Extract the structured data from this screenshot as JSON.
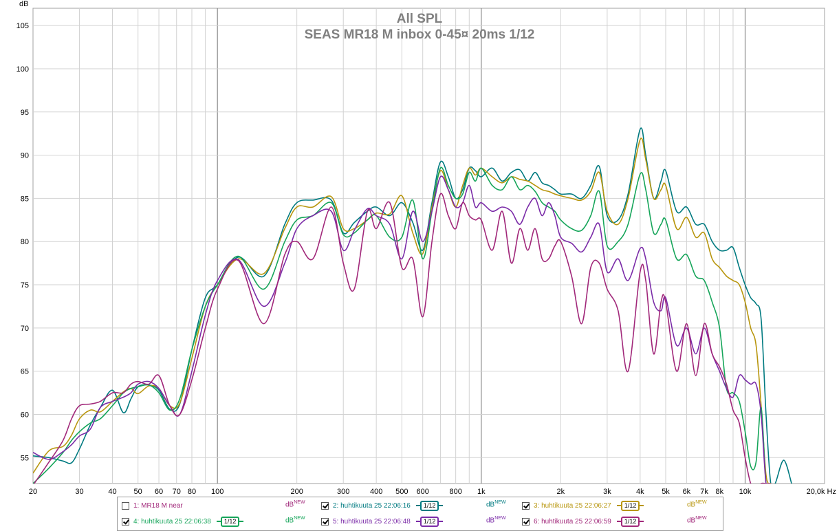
{
  "chart_data": {
    "type": "line",
    "title": "All SPL",
    "subtitle": "SEAS MR18 M inbox 0-45¤ 20ms 1/12",
    "ylabel": "dB",
    "xunit": "Hz",
    "xscale": "log",
    "xlim": [
      20,
      20000
    ],
    "ylim": [
      52,
      107
    ],
    "grid": true,
    "x_ticks": [
      {
        "v": 20,
        "t": "20"
      },
      {
        "v": 30,
        "t": "30"
      },
      {
        "v": 40,
        "t": "40"
      },
      {
        "v": 50,
        "t": "50"
      },
      {
        "v": 60,
        "t": "60"
      },
      {
        "v": 70,
        "t": "70"
      },
      {
        "v": 80,
        "t": "80"
      },
      {
        "v": 100,
        "t": "100"
      },
      {
        "v": 200,
        "t": "200"
      },
      {
        "v": 300,
        "t": "300"
      },
      {
        "v": 400,
        "t": "400"
      },
      {
        "v": 500,
        "t": "500"
      },
      {
        "v": 600,
        "t": "600"
      },
      {
        "v": 800,
        "t": "800"
      },
      {
        "v": 1000,
        "t": "1k"
      },
      {
        "v": 2000,
        "t": "2k"
      },
      {
        "v": 3000,
        "t": "3k"
      },
      {
        "v": 4000,
        "t": "4k"
      },
      {
        "v": 5000,
        "t": "5k"
      },
      {
        "v": 6000,
        "t": "6k"
      },
      {
        "v": 7000,
        "t": "7k"
      },
      {
        "v": 8000,
        "t": "8k"
      },
      {
        "v": 10000,
        "t": "10k"
      },
      {
        "v": 20000,
        "t": "20,0k Hz"
      }
    ],
    "y_ticks": [
      55,
      60,
      65,
      70,
      75,
      80,
      85,
      90,
      95,
      100,
      105
    ],
    "series": [
      {
        "name": "2: huhtikuuta 25 22:06:16",
        "color": "#007a80",
        "x": [
          20,
          23,
          26,
          28,
          30,
          33,
          36,
          40,
          44,
          47,
          50,
          55,
          60,
          66,
          72,
          80,
          90,
          100,
          120,
          150,
          180,
          200,
          230,
          270,
          300,
          330,
          370,
          400,
          450,
          500,
          550,
          600,
          650,
          700,
          750,
          800,
          850,
          900,
          950,
          1000,
          1100,
          1200,
          1300,
          1400,
          1500,
          1600,
          1700,
          1800,
          1900,
          2000,
          2200,
          2400,
          2600,
          2800,
          3000,
          3300,
          3600,
          4000,
          4200,
          4500,
          4800,
          5000,
          5500,
          6000,
          6500,
          7000,
          7500,
          8000,
          8500,
          9000,
          9500,
          10000,
          10500,
          11000,
          11500,
          12000,
          12500,
          13000,
          14000,
          15000
        ],
        "y": [
          55.2,
          55.0,
          54.6,
          54.4,
          56.0,
          58.8,
          60.8,
          62.8,
          60.2,
          61.8,
          63.2,
          63.4,
          62.8,
          60.6,
          61.2,
          67.5,
          73.5,
          75.0,
          78.2,
          76.0,
          82.0,
          84.5,
          84.8,
          84.8,
          81.0,
          82.2,
          83.5,
          84.0,
          83.0,
          84.5,
          82.2,
          79.0,
          84.5,
          89.2,
          87.5,
          85.0,
          86.0,
          88.5,
          88.2,
          87.5,
          88.5,
          87.0,
          88.0,
          88.3,
          87.0,
          88.0,
          86.8,
          86.5,
          86.0,
          85.5,
          85.5,
          85.0,
          86.5,
          88.7,
          83.0,
          82.5,
          85.5,
          93.0,
          90.0,
          85.0,
          87.0,
          88.2,
          83.5,
          84.0,
          82.0,
          82.0,
          80.0,
          79.0,
          79.0,
          79.3,
          77.0,
          75.0,
          73.5,
          72.8,
          71.0,
          60.0,
          52.0,
          52.0,
          54.7,
          52.0
        ]
      },
      {
        "name": "3: huhtikuuta 25 22:06:27",
        "color": "#b8960e",
        "x": [
          20,
          23,
          26,
          28,
          30,
          33,
          36,
          40,
          44,
          47,
          50,
          55,
          60,
          66,
          72,
          80,
          90,
          100,
          120,
          150,
          180,
          200,
          230,
          270,
          300,
          330,
          370,
          400,
          450,
          500,
          550,
          600,
          650,
          700,
          750,
          800,
          850,
          900,
          950,
          1000,
          1100,
          1200,
          1300,
          1400,
          1500,
          1600,
          1700,
          1800,
          1900,
          2000,
          2200,
          2400,
          2600,
          2800,
          3000,
          3300,
          3600,
          4000,
          4200,
          4500,
          4800,
          5000,
          5500,
          6000,
          6500,
          7000,
          7500,
          8000,
          8500,
          9000,
          9500,
          10000,
          10500,
          11000,
          11500,
          12000,
          12500
        ],
        "y": [
          53.2,
          55.8,
          56.3,
          57.6,
          59.5,
          60.5,
          60.3,
          61.5,
          62.6,
          63.0,
          62.4,
          63.3,
          63.0,
          61.0,
          61.3,
          66.5,
          72.5,
          75.0,
          78.0,
          76.3,
          81.5,
          84.0,
          84.0,
          85.2,
          81.5,
          81.5,
          82.5,
          83.3,
          83.2,
          85.3,
          81.0,
          78.6,
          84.0,
          88.2,
          86.0,
          84.0,
          86.5,
          88.5,
          87.7,
          88.5,
          87.5,
          86.8,
          87.5,
          87.2,
          87.0,
          86.5,
          86.0,
          85.8,
          85.5,
          85.3,
          85.0,
          84.8,
          85.8,
          88.0,
          83.5,
          82.0,
          85.0,
          91.8,
          89.5,
          85.0,
          86.0,
          86.5,
          81.5,
          82.8,
          80.5,
          81.0,
          78.0,
          77.0,
          76.0,
          75.5,
          75.0,
          73.0,
          70.0,
          68.0,
          61.0,
          53.0,
          52.0
        ]
      },
      {
        "name": "4: huhtikuuta 25 22:06:38",
        "color": "#16a55a",
        "x": [
          20,
          23,
          26,
          28,
          30,
          33,
          36,
          40,
          44,
          47,
          50,
          55,
          60,
          66,
          72,
          80,
          90,
          100,
          120,
          150,
          180,
          200,
          230,
          270,
          300,
          330,
          370,
          400,
          450,
          500,
          550,
          600,
          650,
          700,
          750,
          800,
          850,
          900,
          950,
          1000,
          1100,
          1200,
          1300,
          1400,
          1500,
          1600,
          1700,
          1800,
          1900,
          2000,
          2200,
          2400,
          2600,
          2800,
          3000,
          3300,
          3600,
          4000,
          4200,
          4500,
          4800,
          5000,
          5500,
          6000,
          6500,
          7000,
          7500,
          8000,
          8500,
          9000,
          9500,
          10000,
          10500,
          11000,
          11500,
          12000,
          12500
        ],
        "y": [
          52.0,
          53.8,
          55.6,
          57.0,
          58.0,
          59.0,
          59.5,
          61.0,
          62.5,
          63.0,
          63.2,
          63.4,
          62.5,
          60.5,
          61.8,
          67.5,
          72.5,
          75.0,
          78.3,
          74.5,
          80.0,
          82.5,
          83.0,
          84.5,
          80.8,
          81.0,
          82.5,
          83.0,
          80.5,
          80.5,
          84.8,
          78.0,
          83.5,
          88.5,
          86.5,
          85.0,
          85.5,
          88.0,
          87.0,
          88.5,
          86.5,
          86.0,
          87.5,
          86.0,
          86.5,
          85.8,
          84.5,
          84.0,
          83.5,
          82.5,
          81.5,
          81.3,
          83.0,
          85.8,
          79.5,
          80.0,
          82.0,
          87.8,
          86.0,
          81.0,
          82.0,
          82.5,
          78.0,
          78.5,
          76.0,
          75.5,
          73.0,
          70.0,
          63.0,
          62.5,
          61.5,
          58.0,
          54.0,
          54.5,
          60.8,
          52.0,
          52.0
        ]
      },
      {
        "name": "5: huhtikuuta 25 22:06:48",
        "color": "#7b2ca8",
        "x": [
          20,
          23,
          26,
          28,
          30,
          33,
          36,
          40,
          44,
          47,
          50,
          55,
          60,
          66,
          72,
          80,
          90,
          100,
          120,
          150,
          180,
          200,
          230,
          270,
          300,
          330,
          370,
          400,
          450,
          500,
          550,
          600,
          650,
          700,
          750,
          800,
          850,
          900,
          950,
          1000,
          1100,
          1200,
          1300,
          1400,
          1500,
          1600,
          1700,
          1800,
          1900,
          2000,
          2200,
          2400,
          2600,
          2800,
          3000,
          3300,
          3600,
          4000,
          4200,
          4500,
          4800,
          5000,
          5500,
          6000,
          6500,
          7000,
          7500,
          8000,
          8500,
          9000,
          9500,
          10000,
          10500,
          11000,
          11500,
          12000,
          12500
        ],
        "y": [
          55.6,
          54.8,
          55.7,
          56.5,
          57.5,
          58.3,
          60.8,
          61.5,
          62.0,
          62.5,
          63.5,
          63.8,
          63.0,
          61.0,
          60.0,
          65.0,
          71.5,
          75.5,
          77.9,
          72.5,
          77.5,
          81.5,
          83.0,
          83.5,
          79.0,
          81.3,
          83.8,
          83.0,
          82.0,
          78.0,
          83.5,
          80.0,
          83.5,
          87.5,
          86.0,
          84.0,
          84.5,
          86.5,
          84.0,
          84.5,
          83.5,
          84.0,
          83.5,
          82.0,
          84.0,
          85.0,
          83.0,
          84.5,
          83.0,
          80.5,
          79.8,
          78.8,
          80.5,
          82.0,
          76.5,
          78.0,
          75.5,
          79.2,
          78.0,
          73.0,
          72.0,
          73.5,
          68.0,
          70.0,
          67.0,
          70.0,
          67.0,
          65.0,
          63.0,
          62.0,
          64.5,
          64.0,
          63.5,
          63.5,
          60.0,
          52.0,
          52.0
        ]
      },
      {
        "name": "6: huhtikuuta 25 22:06:59",
        "color": "#a1287a",
        "x": [
          20,
          23,
          26,
          28,
          30,
          33,
          36,
          40,
          44,
          47,
          50,
          55,
          60,
          66,
          72,
          80,
          90,
          100,
          120,
          150,
          180,
          200,
          230,
          270,
          300,
          330,
          370,
          400,
          450,
          500,
          550,
          600,
          650,
          700,
          750,
          800,
          850,
          900,
          950,
          1000,
          1100,
          1200,
          1300,
          1400,
          1500,
          1600,
          1700,
          1800,
          1900,
          2000,
          2200,
          2400,
          2600,
          2800,
          3000,
          3300,
          3600,
          4000,
          4200,
          4500,
          4800,
          5000,
          5500,
          6000,
          6500,
          7000,
          7500,
          8000,
          8500,
          9000,
          9500,
          10000,
          10500,
          11000,
          11500,
          12000,
          12500
        ],
        "y": [
          51.8,
          54.5,
          57.0,
          59.5,
          61.0,
          61.2,
          61.5,
          62.5,
          62.5,
          63.5,
          63.8,
          63.5,
          64.5,
          61.0,
          60.0,
          64.0,
          70.0,
          74.5,
          77.8,
          70.5,
          78.5,
          80.0,
          78.0,
          84.0,
          77.5,
          74.5,
          83.5,
          81.5,
          84.5,
          77.0,
          78.0,
          71.3,
          80.0,
          85.5,
          83.0,
          81.5,
          84.5,
          83.0,
          82.5,
          82.5,
          79.0,
          83.5,
          77.5,
          81.5,
          79.0,
          81.5,
          78.0,
          78.0,
          79.5,
          80.0,
          76.0,
          70.5,
          77.0,
          77.5,
          74.5,
          72.0,
          65.0,
          76.5,
          75.5,
          67.0,
          73.0,
          73.0,
          65.0,
          70.5,
          64.5,
          70.5,
          67.0,
          65.5,
          63.5,
          60.5,
          59.0,
          55.0,
          52.0,
          51.5,
          52.0,
          52.0,
          52.0
        ]
      }
    ]
  },
  "legend": {
    "items": [
      {
        "label": "1: MR18 M near",
        "color": "#a1287a",
        "checked": false,
        "smoothing": "",
        "unit": "dB",
        "unit_sup": "NEW"
      },
      {
        "label": "2: huhtikuuta 25 22:06:16",
        "color": "#007a80",
        "checked": true,
        "smoothing": "1/12",
        "unit": "dB",
        "unit_sup": "NEW"
      },
      {
        "label": "3: huhtikuuta 25 22:06:27",
        "color": "#b8960e",
        "checked": true,
        "smoothing": "1/12",
        "unit": "dB",
        "unit_sup": "NEW"
      },
      {
        "label": "4: huhtikuuta 25 22:06:38",
        "color": "#16a55a",
        "checked": true,
        "smoothing": "1/12",
        "unit": "dB",
        "unit_sup": "NEW"
      },
      {
        "label": "5: huhtikuuta 25 22:06:48",
        "color": "#7b2ca8",
        "checked": true,
        "smoothing": "1/12",
        "unit": "dB",
        "unit_sup": "NEW"
      },
      {
        "label": "6: huhtikuuta 25 22:06:59",
        "color": "#a1287a",
        "checked": true,
        "smoothing": "1/12",
        "unit": "dB",
        "unit_sup": "NEW"
      }
    ]
  }
}
